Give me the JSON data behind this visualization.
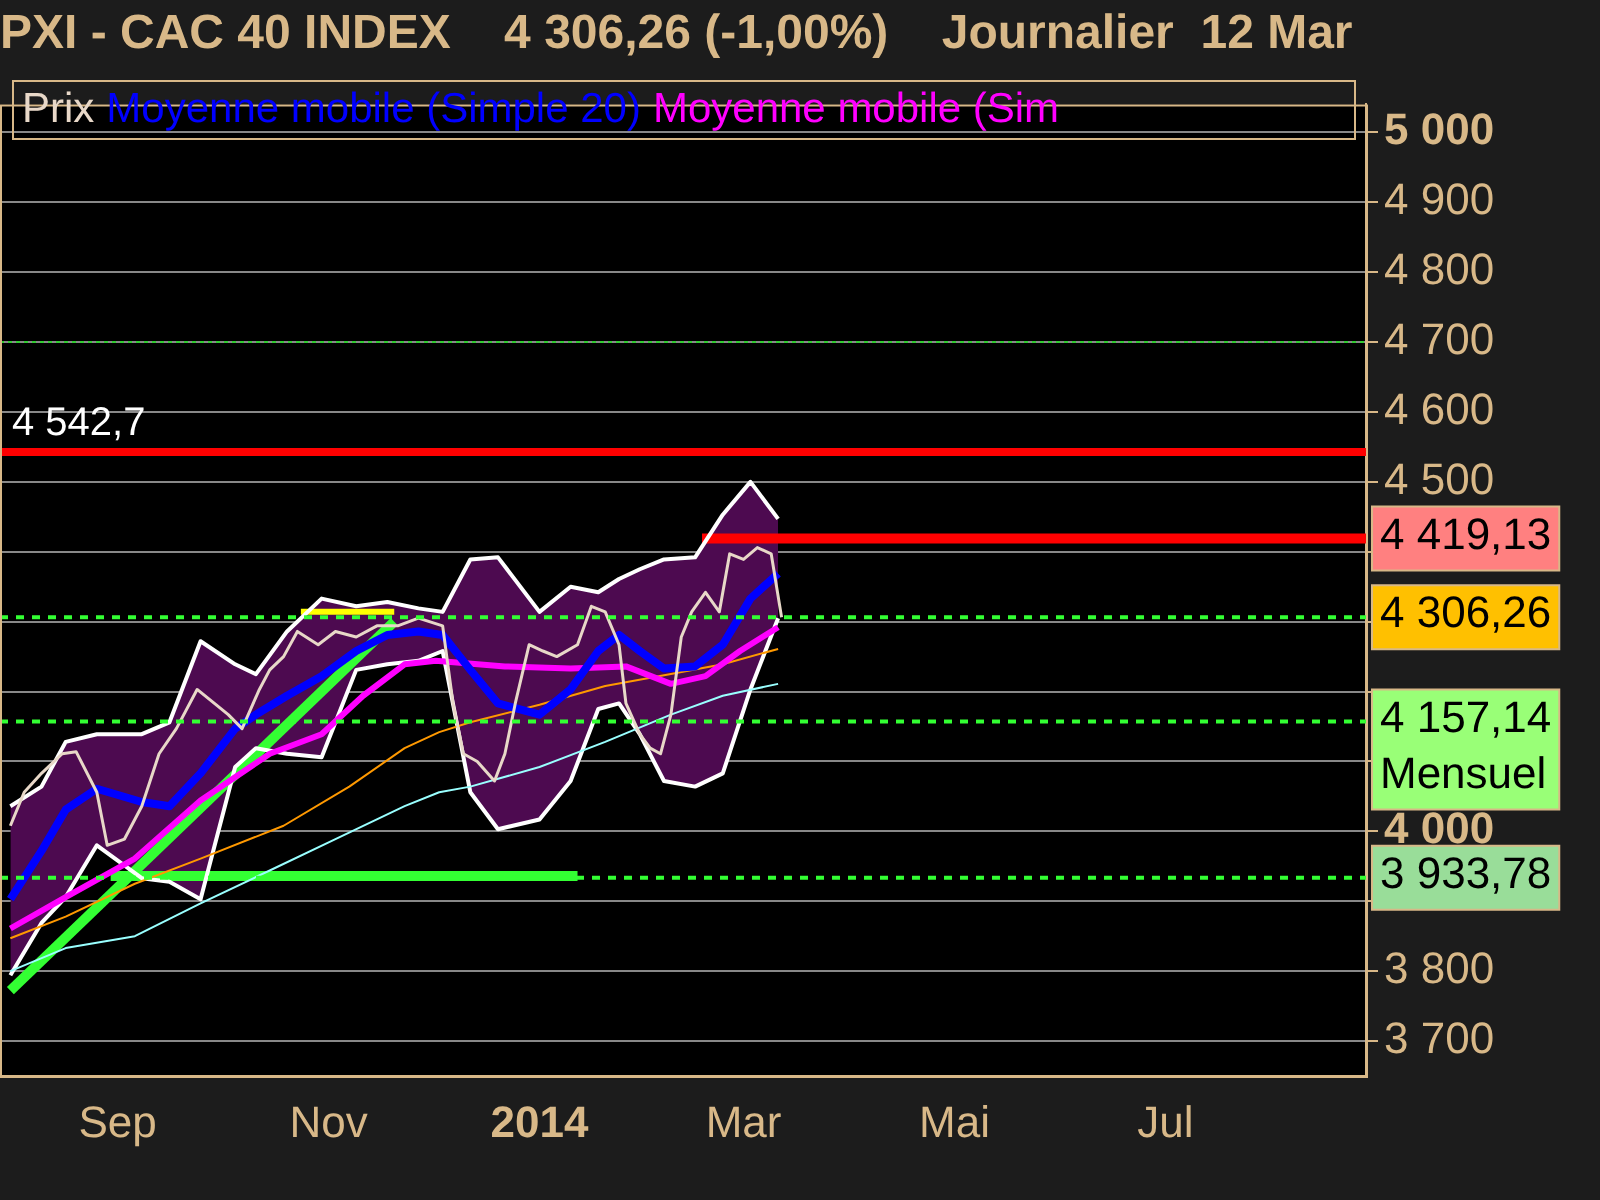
{
  "chart_data": {
    "type": "line",
    "title": "PXI - CAC 40 INDEX    4 306,26 (-1,00%)    Journalier  12 Mar",
    "legend": "top",
    "grid": "y",
    "marker": "none",
    "xlim": [
      "2013-07-29",
      "2014-08-28"
    ],
    "xticks": [
      {
        "value": "2013-09-01",
        "label": "Sep"
      },
      {
        "value": "2013-11-01",
        "label": "Nov"
      },
      {
        "value": "2014-01-01",
        "label": "2014"
      },
      {
        "value": "2014-03-01",
        "label": "Mar"
      },
      {
        "value": "2014-05-01",
        "label": "Mai"
      },
      {
        "value": "2014-07-01",
        "label": "Jul"
      }
    ],
    "ylim": [
      3650,
      5040
    ],
    "yticks": [
      {
        "value": 3700,
        "label": "3 700"
      },
      {
        "value": 3800,
        "label": "3 800"
      },
      {
        "value": 3900,
        "label": null
      },
      {
        "value": 4000,
        "label": "4 000"
      },
      {
        "value": 4100,
        "label": null
      },
      {
        "value": 4200,
        "label": null
      },
      {
        "value": 4300,
        "label": null
      },
      {
        "value": 4400,
        "label": null
      },
      {
        "value": 4500,
        "label": "4 500"
      },
      {
        "value": 4600,
        "label": "4 600"
      },
      {
        "value": 4700,
        "label": "4 700"
      },
      {
        "value": 4800,
        "label": "4 800"
      },
      {
        "value": 4900,
        "label": "4 900"
      },
      {
        "value": 5000,
        "label": "5 000"
      }
    ],
    "series": [
      {
        "name": "Prix",
        "color": "#e8d8c8",
        "x": [
          "2013-08-01",
          "2013-08-05",
          "2013-08-10",
          "2013-08-16",
          "2013-08-20",
          "2013-08-26",
          "2013-08-29",
          "2013-09-03",
          "2013-09-08",
          "2013-09-13",
          "2013-09-18",
          "2013-09-24",
          "2013-09-29",
          "2013-10-03",
          "2013-10-07",
          "2013-10-12",
          "2013-10-15",
          "2013-10-19",
          "2013-10-23",
          "2013-10-29",
          "2013-11-03",
          "2013-11-09",
          "2013-11-15",
          "2013-11-21",
          "2013-11-27",
          "2013-12-04",
          "2013-12-07",
          "2013-12-10",
          "2013-12-14",
          "2013-12-19",
          "2013-12-22",
          "2013-12-25",
          "2013-12-29",
          "2014-01-02",
          "2014-01-06",
          "2014-01-12",
          "2014-01-16",
          "2014-01-20",
          "2014-01-24",
          "2014-01-26",
          "2014-01-30",
          "2014-02-02",
          "2014-02-05",
          "2014-02-08",
          "2014-02-11",
          "2014-02-14",
          "2014-02-18",
          "2014-02-22",
          "2014-02-25",
          "2014-03-01",
          "2014-03-05",
          "2014-03-09",
          "2014-03-12"
        ],
        "values": [
          4008,
          4056,
          4083,
          4111,
          4114,
          4056,
          3980,
          3989,
          4036,
          4111,
          4147,
          4203,
          4183,
          4167,
          4147,
          4203,
          4231,
          4250,
          4286,
          4267,
          4286,
          4278,
          4294,
          4294,
          4305,
          4294,
          4183,
          4111,
          4100,
          4072,
          4111,
          4183,
          4267,
          4258,
          4250,
          4267,
          4322,
          4314,
          4267,
          4183,
          4139,
          4119,
          4111,
          4167,
          4278,
          4314,
          4342,
          4314,
          4397,
          4389,
          4406,
          4397,
          4306.26
        ]
      },
      {
        "name": "Moyenne mobile (Simple 20)",
        "color": "#0000ff",
        "x": [
          "2013-08-01",
          "2013-08-10",
          "2013-08-17",
          "2013-08-26",
          "2013-09-08",
          "2013-09-16",
          "2013-09-25",
          "2013-10-05",
          "2013-10-11",
          "2013-10-20",
          "2013-10-30",
          "2013-11-09",
          "2013-11-18",
          "2013-11-27",
          "2013-12-04",
          "2013-12-12",
          "2013-12-20",
          "2014-01-01",
          "2014-01-10",
          "2014-01-18",
          "2014-01-24",
          "2014-01-30",
          "2014-02-06",
          "2014-02-15",
          "2014-02-23",
          "2014-03-03",
          "2014-03-11"
        ],
        "values": [
          3903,
          3972,
          4031,
          4061,
          4042,
          4036,
          4083,
          4147,
          4167,
          4194,
          4222,
          4258,
          4281,
          4286,
          4281,
          4231,
          4183,
          4167,
          4203,
          4258,
          4281,
          4258,
          4233,
          4236,
          4267,
          4333,
          4369
        ],
        "upper": [
          4036,
          4064,
          4128,
          4139,
          4139,
          4156,
          4272,
          4239,
          4225,
          4286,
          4333,
          4322,
          4328,
          4319,
          4314,
          4389,
          4392,
          4314,
          4350,
          4342,
          4361,
          4375,
          4389,
          4392,
          4453,
          4500,
          4447
        ],
        "lower": [
          3794,
          3869,
          3906,
          3980,
          3933,
          3928,
          3903,
          4092,
          4119,
          4111,
          4106,
          4231,
          4239,
          4244,
          4258,
          4056,
          4003,
          4017,
          4072,
          4175,
          4183,
          4139,
          4072,
          4064,
          4083,
          4203,
          4305
        ]
      },
      {
        "name": "Moyenne mobile (Sim",
        "color": "#ff00ff",
        "x": [
          "2013-08-01",
          "2013-08-17",
          "2013-09-06",
          "2013-09-25",
          "2013-10-15",
          "2013-10-30",
          "2013-11-11",
          "2013-11-23",
          "2013-12-02",
          "2013-12-22",
          "2014-01-10",
          "2014-01-26",
          "2014-02-08",
          "2014-02-18",
          "2014-02-28",
          "2014-03-11"
        ],
        "values": [
          3861,
          3906,
          3961,
          4044,
          4111,
          4139,
          4194,
          4239,
          4244,
          4236,
          4233,
          4236,
          4211,
          4222,
          4258,
          4292
        ]
      },
      {
        "color": "#ff9900",
        "x": [
          "2013-08-01",
          "2013-08-17",
          "2013-09-06",
          "2013-09-25",
          "2013-10-19",
          "2013-11-07",
          "2013-11-23",
          "2013-12-03",
          "2013-12-12",
          "2014-01-01",
          "2014-01-20",
          "2014-02-08",
          "2014-02-23",
          "2014-03-11"
        ],
        "values": [
          3847,
          3878,
          3925,
          3961,
          4008,
          4064,
          4119,
          4142,
          4156,
          4181,
          4208,
          4225,
          4239,
          4261
        ]
      },
      {
        "color": "#99ffff",
        "x": [
          "2013-08-01",
          "2013-08-17",
          "2013-09-06",
          "2013-09-25",
          "2013-10-15",
          "2013-11-03",
          "2013-11-23",
          "2013-12-03",
          "2013-12-12",
          "2014-01-01",
          "2014-01-20",
          "2014-02-08",
          "2014-02-23",
          "2014-03-11"
        ],
        "values": [
          3800,
          3833,
          3850,
          3897,
          3944,
          3989,
          4036,
          4056,
          4064,
          4092,
          4128,
          4167,
          4194,
          4211
        ]
      },
      {
        "color": "#ffffff",
        "x": [
          "2013-08-01",
          "2013-08-10",
          "2013-08-17",
          "2013-08-26",
          "2013-09-08",
          "2013-09-16",
          "2013-09-25",
          "2013-10-05",
          "2013-10-11",
          "2013-10-20",
          "2013-10-30",
          "2013-11-09",
          "2013-11-18",
          "2013-11-27",
          "2013-12-04",
          "2013-12-12",
          "2013-12-20",
          "2014-01-01",
          "2014-01-10",
          "2014-01-18",
          "2014-01-24",
          "2014-01-30",
          "2014-02-06",
          "2014-02-15",
          "2014-02-23",
          "2014-03-03",
          "2014-03-11"
        ],
        "values": [
          4036,
          4064,
          4128,
          4139,
          4139,
          4156,
          4272,
          4239,
          4225,
          4286,
          4333,
          4322,
          4328,
          4319,
          4314,
          4389,
          4392,
          4314,
          4350,
          4342,
          4361,
          4375,
          4389,
          4392,
          4453,
          4500,
          4447
        ]
      },
      {
        "color": "#ffffff",
        "x": [
          "2013-08-01",
          "2013-08-10",
          "2013-08-17",
          "2013-08-26",
          "2013-09-08",
          "2013-09-16",
          "2013-09-25",
          "2013-10-05",
          "2013-10-11",
          "2013-10-20",
          "2013-10-30",
          "2013-11-09",
          "2013-11-18",
          "2013-11-27",
          "2013-12-04",
          "2013-12-12",
          "2013-12-20",
          "2014-01-01",
          "2014-01-10",
          "2014-01-18",
          "2014-01-24",
          "2014-01-30",
          "2014-02-06",
          "2014-02-15",
          "2014-02-23",
          "2014-03-03",
          "2014-03-11"
        ],
        "values": [
          3794,
          3869,
          3906,
          3980,
          3933,
          3928,
          3903,
          4092,
          4119,
          4111,
          4106,
          4231,
          4239,
          4244,
          4258,
          4056,
          4003,
          4017,
          4072,
          4175,
          4183,
          4139,
          4072,
          4064,
          4083,
          4203,
          4305
        ]
      },
      {
        "color": "#33ff33",
        "x": [
          "2013-08-01",
          "2013-11-20"
        ],
        "values": [
          3772,
          4300
        ]
      },
      {
        "color": "#33ff33",
        "x": [
          "2013-08-30",
          "2014-01-12"
        ],
        "values": [
          3936,
          3936
        ]
      },
      {
        "color": "#ffff00",
        "x": [
          "2013-10-24",
          "2013-11-20"
        ],
        "values": [
          4314,
          4314
        ]
      },
      {
        "color": "#ff0000",
        "x": [
          "2014-02-17",
          "2014-08-28"
        ],
        "values": [
          4419.13,
          4419.13
        ]
      }
    ],
    "ref_lines": [
      {
        "axis": "y",
        "value": 4542.7,
        "label": "4 542,7",
        "color": "#ff0000",
        "line_style": "solid"
      },
      {
        "axis": "y",
        "value": 4700,
        "color": "#33cc33",
        "line_style": "dotted"
      },
      {
        "axis": "y",
        "value": 4306.26,
        "label": "4 306,26",
        "color": "#33ff33",
        "line_style": "dashed"
      },
      {
        "axis": "y",
        "value": 4157.14,
        "label": "4 157,14\nMensuel",
        "color": "#33ff33",
        "line_style": "dashed"
      },
      {
        "axis": "y",
        "value": 3933.78,
        "label": "3 933,78",
        "color": "#33ff33",
        "line_style": "dashed"
      }
    ],
    "annotations": [
      "4 419,13"
    ]
  }
}
